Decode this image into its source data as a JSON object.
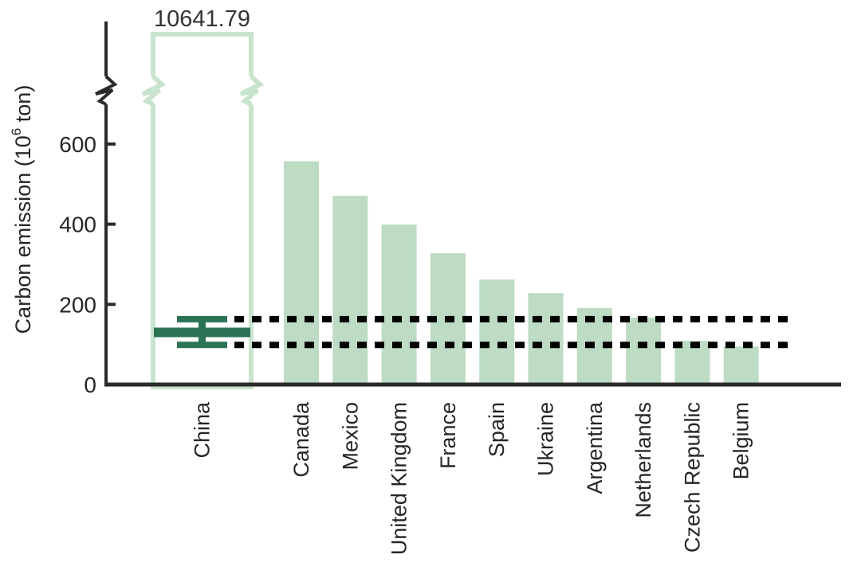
{
  "chart_data": {
    "type": "bar",
    "title": "",
    "ylabel": "Carbon emission (10⁶ ton)",
    "ylabel_parts": {
      "prefix": "Carbon emission (10",
      "sup": "6",
      "suffix": " ton)"
    },
    "categories": [
      "China",
      "Canada",
      "Mexico",
      "United Kingdom",
      "France",
      "Spain",
      "Ukraine",
      "Argentina",
      "Netherlands",
      "Czech Republic",
      "Belgium"
    ],
    "values": [
      10641.79,
      557,
      471,
      399,
      328,
      262,
      228,
      191,
      167,
      109,
      95
    ],
    "china_value_label": "10641.79",
    "yticks": [
      0,
      200,
      400,
      600
    ],
    "tick_labels": [
      "0",
      "200",
      "400",
      "600"
    ],
    "ylim_display": [
      0,
      700
    ],
    "axis_break": {
      "enabled": true,
      "between_display_value": 700,
      "resume_at_value": 10641.79
    },
    "error_bar": {
      "category": "China",
      "mean": 130,
      "upper": 163,
      "lower": 99
    },
    "reference_lines": {
      "upper": 163,
      "lower": 99,
      "style": "dashed"
    },
    "grid": false,
    "legend": false
  },
  "colors": {
    "bar_fill": "#bddcc3",
    "china_outline": "#c9e4ce",
    "error_bar": "#2b7355",
    "axis": "#2b2b2b",
    "text": "#262626",
    "dashed_line": "#000000"
  }
}
